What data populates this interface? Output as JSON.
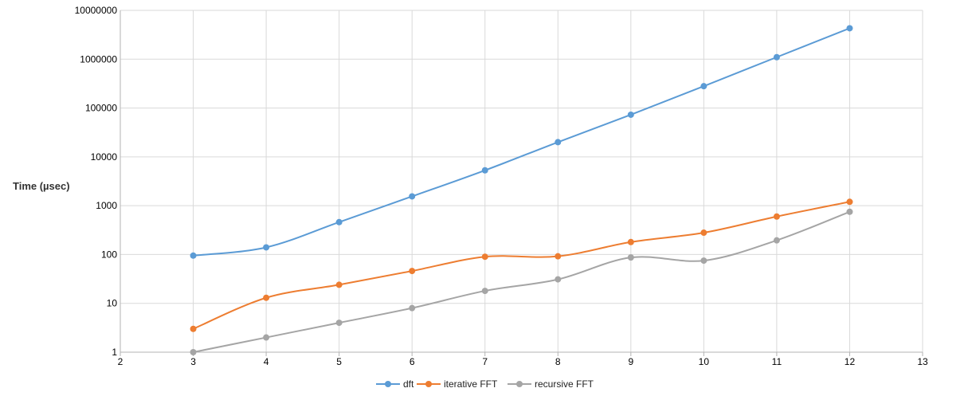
{
  "chart_data": {
    "type": "line",
    "title": "",
    "xlabel": "",
    "ylabel": "Time (µsec)",
    "y_scale": "log",
    "xlim": [
      2,
      13
    ],
    "ylim": [
      1,
      10000000
    ],
    "x_ticks": [
      "2",
      "3",
      "4",
      "5",
      "6",
      "7",
      "8",
      "9",
      "10",
      "11",
      "12",
      "13"
    ],
    "y_ticks": [
      "1",
      "10",
      "100",
      "1000",
      "10000",
      "100000",
      "1000000",
      "10000000"
    ],
    "grid": true,
    "legend_position": "bottom",
    "x": [
      3,
      4,
      5,
      6,
      7,
      8,
      9,
      10,
      11,
      12
    ],
    "series": [
      {
        "name": "dft",
        "color": "#5b9bd5",
        "values": [
          95,
          140,
          460,
          1550,
          5300,
          20000,
          73000,
          280000,
          1100000,
          4300000
        ]
      },
      {
        "name": "iterative FFT",
        "color": "#ed7d31",
        "values": [
          3,
          13,
          24,
          46,
          90,
          92,
          180,
          280,
          600,
          1200
        ]
      },
      {
        "name": "recursive FFT",
        "color": "#a5a5a5",
        "values": [
          1,
          2,
          4,
          8,
          18,
          31,
          87,
          75,
          195,
          750
        ]
      }
    ]
  }
}
